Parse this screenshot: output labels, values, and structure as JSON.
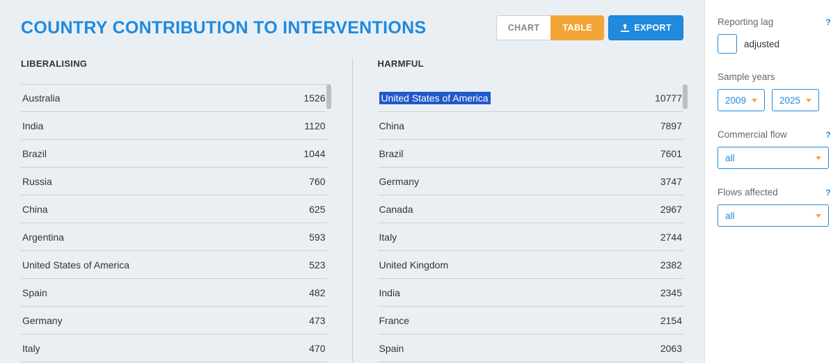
{
  "header": {
    "title": "COUNTRY CONTRIBUTION TO INTERVENTIONS",
    "tabs": {
      "chart": "CHART",
      "table": "TABLE"
    },
    "export_label": "EXPORT"
  },
  "columns": {
    "liberalising": {
      "title": "LIBERALISING",
      "rows": [
        {
          "country": "Australia",
          "value": "1526"
        },
        {
          "country": "India",
          "value": "1120"
        },
        {
          "country": "Brazil",
          "value": "1044"
        },
        {
          "country": "Russia",
          "value": "760"
        },
        {
          "country": "China",
          "value": "625"
        },
        {
          "country": "Argentina",
          "value": "593"
        },
        {
          "country": "United States of America",
          "value": "523"
        },
        {
          "country": "Spain",
          "value": "482"
        },
        {
          "country": "Germany",
          "value": "473"
        },
        {
          "country": "Italy",
          "value": "470"
        }
      ]
    },
    "harmful": {
      "title": "HARMFUL",
      "selected_index": 0,
      "rows": [
        {
          "country": "United States of America",
          "value": "10777"
        },
        {
          "country": "China",
          "value": "7897"
        },
        {
          "country": "Brazil",
          "value": "7601"
        },
        {
          "country": "Germany",
          "value": "3747"
        },
        {
          "country": "Canada",
          "value": "2967"
        },
        {
          "country": "Italy",
          "value": "2744"
        },
        {
          "country": "United Kingdom",
          "value": "2382"
        },
        {
          "country": "India",
          "value": "2345"
        },
        {
          "country": "France",
          "value": "2154"
        },
        {
          "country": "Spain",
          "value": "2063"
        }
      ]
    }
  },
  "sidebar": {
    "reporting_lag": {
      "label": "Reporting lag",
      "checkbox_label": "adjusted",
      "checked": false
    },
    "sample_years": {
      "label": "Sample years",
      "from": "2009",
      "to": "2025"
    },
    "commercial_flow": {
      "label": "Commercial flow",
      "value": "all"
    },
    "flows_affected": {
      "label": "Flows affected",
      "value": "all"
    }
  },
  "colors": {
    "background": "#eaeff4",
    "accent_blue": "#1f8ade",
    "accent_orange": "#f3a537",
    "selection_bg": "#2059c9",
    "border": "#c9ced5",
    "text": "#333333",
    "sidebar_label": "#5f6975"
  }
}
